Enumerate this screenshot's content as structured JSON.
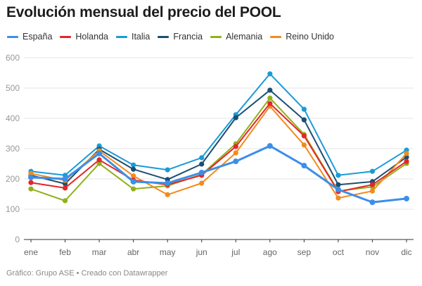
{
  "chart_data": {
    "type": "line",
    "title": "Evolución mensual del precio del POOL",
    "xlabel": "",
    "ylabel": "",
    "ylim": [
      0,
      600
    ],
    "yticks": [
      0,
      100,
      200,
      300,
      400,
      500,
      600
    ],
    "ytick_labels": [
      "0",
      "100",
      "200",
      "300",
      "400",
      "500",
      "600"
    ],
    "grid": true,
    "legend_position": "top-left",
    "categories": [
      "ene",
      "feb",
      "mar",
      "abr",
      "may",
      "jun",
      "jul",
      "ago",
      "sep",
      "oct",
      "nov",
      "dic"
    ],
    "series": [
      {
        "name": "Italia",
        "color": "#1a9bd7",
        "values": [
          225,
          212,
          309,
          246,
          230,
          270,
          412,
          547,
          430,
          212,
          225,
          295
        ]
      },
      {
        "name": "Francia",
        "color": "#1b4f72",
        "values": [
          212,
          184,
          298,
          232,
          198,
          249,
          402,
          493,
          395,
          181,
          191,
          272
        ]
      },
      {
        "name": "Alemania",
        "color": "#8fb11b",
        "values": [
          167,
          128,
          251,
          167,
          177,
          215,
          316,
          467,
          347,
          160,
          174,
          251
        ]
      },
      {
        "name": "Reino Unido",
        "color": "#f28b1c",
        "values": [
          218,
          195,
          293,
          210,
          148,
          186,
          286,
          440,
          312,
          137,
          160,
          284
        ]
      },
      {
        "name": "Holanda",
        "color": "#e5262a",
        "values": [
          188,
          170,
          263,
          196,
          181,
          212,
          307,
          449,
          342,
          158,
          181,
          258
        ]
      },
      {
        "name": "España",
        "color": "#3c8fe8",
        "values": [
          205,
          200,
          284,
          191,
          186,
          221,
          258,
          309,
          244,
          165,
          123,
          135
        ]
      }
    ]
  },
  "legend": [
    {
      "name": "España",
      "color": "#3c8fe8"
    },
    {
      "name": "Holanda",
      "color": "#e5262a"
    },
    {
      "name": "Italia",
      "color": "#1a9bd7"
    },
    {
      "name": "Francia",
      "color": "#1b4f72"
    },
    {
      "name": "Alemania",
      "color": "#8fb11b"
    },
    {
      "name": "Reino Unido",
      "color": "#f28b1c"
    }
  ],
  "footer": "Gráfico: Grupo ASE • Creado con Datawrapper"
}
